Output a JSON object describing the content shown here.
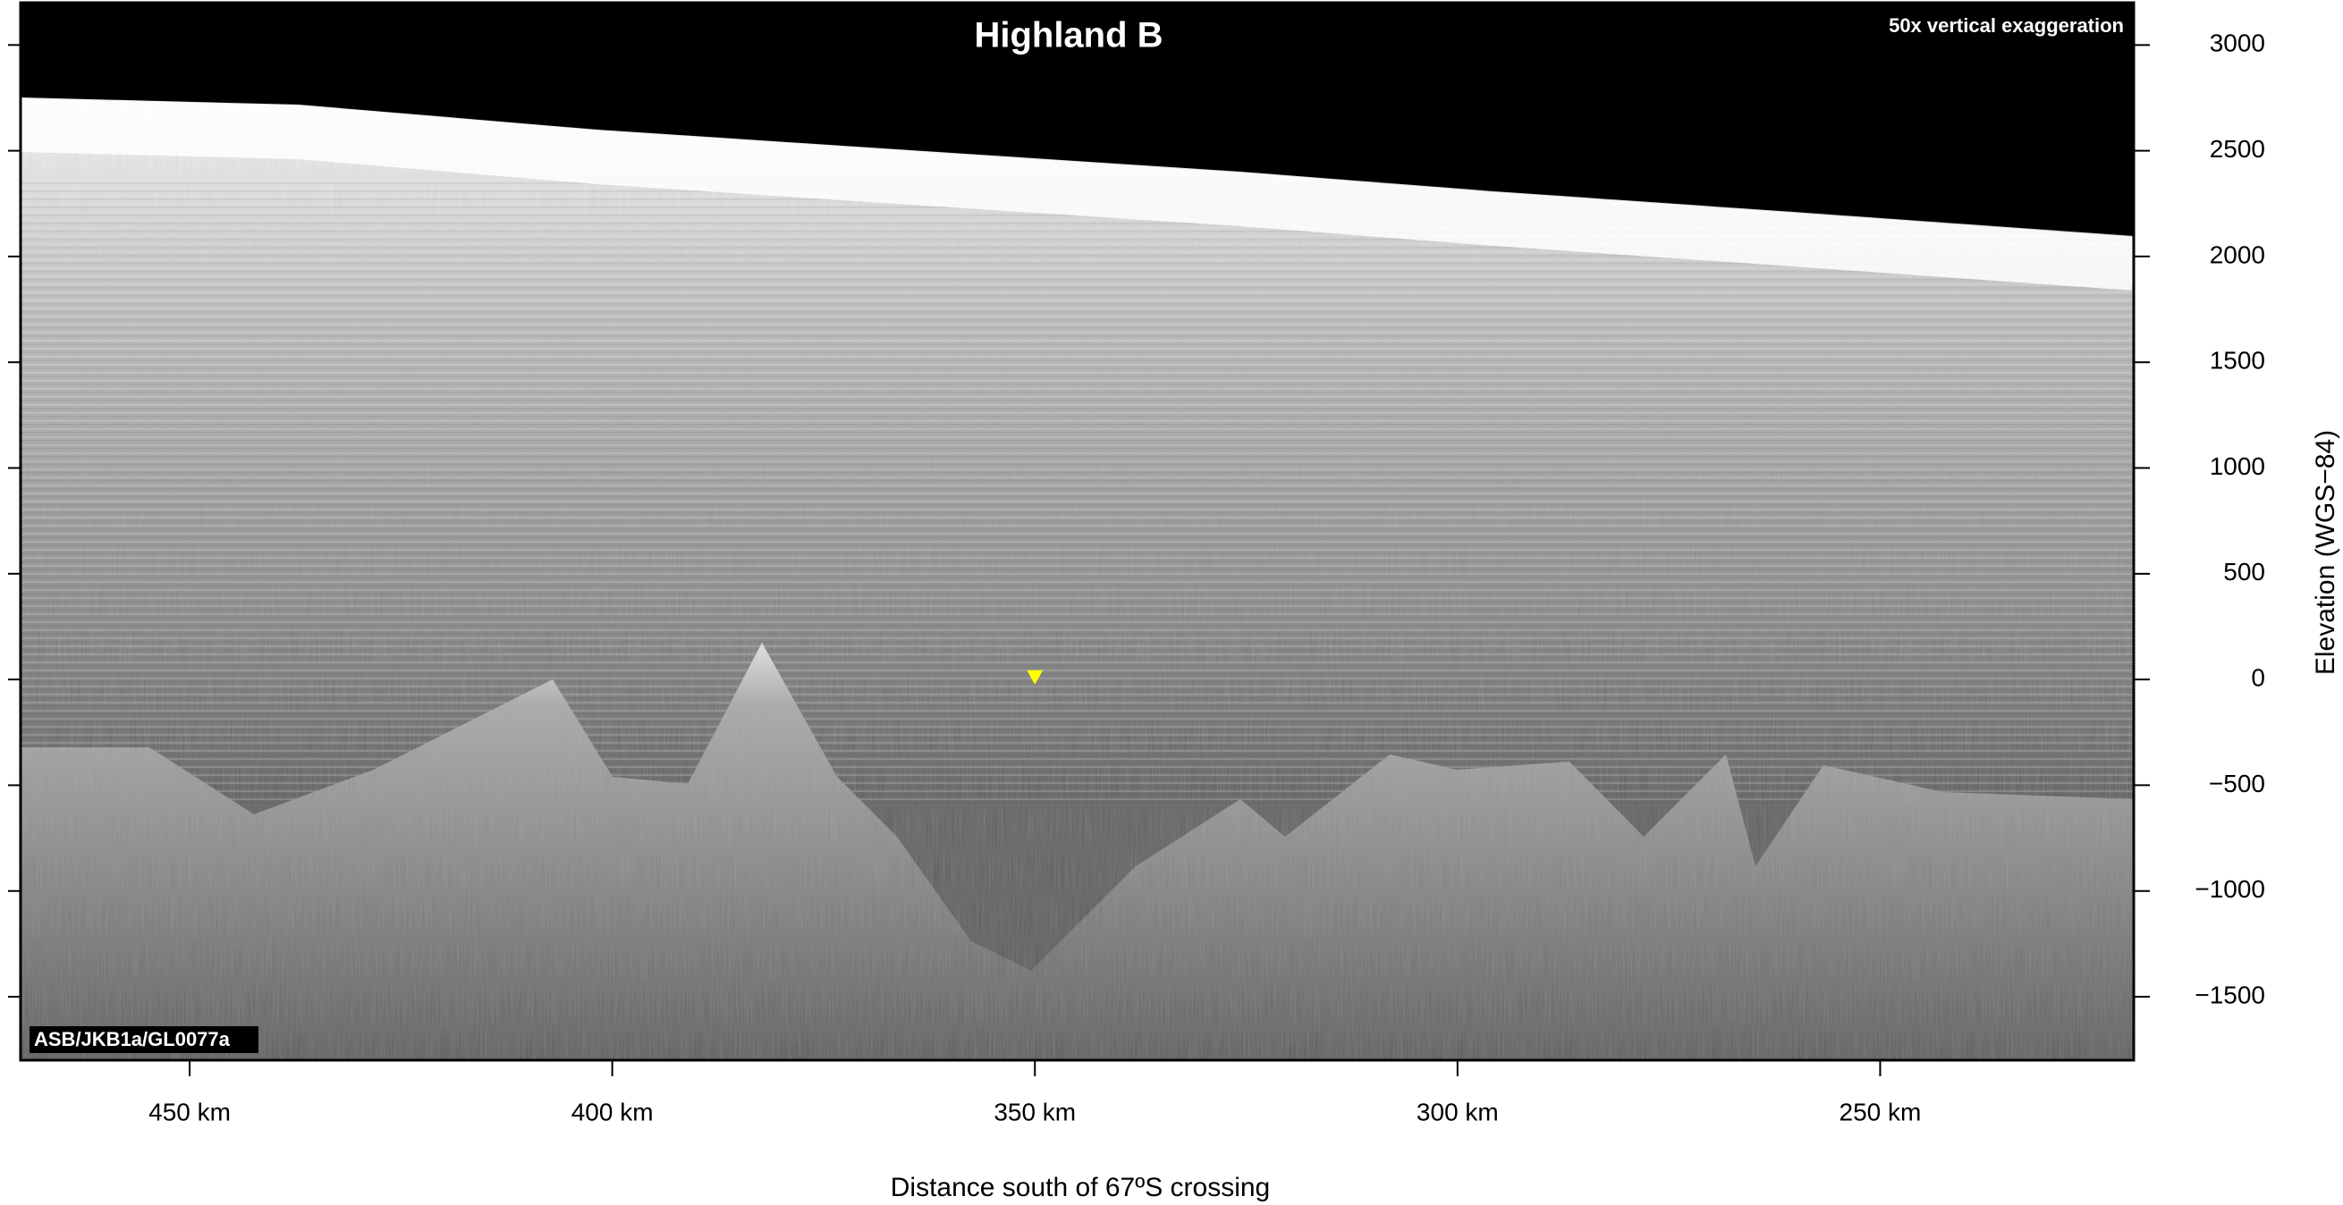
{
  "chart_data": {
    "type": "radargram",
    "title": "Highland B",
    "annotations": [
      "50x vertical exaggeration",
      "ASB/JKB1a/GL0077a"
    ],
    "x_label": "Distance south of 67ºS crossing",
    "y_label": "Elevation (WGS−84)",
    "xlim": [
      470,
      220
    ],
    "ylim": [
      -1800,
      3200
    ],
    "xticks": [
      {
        "value": 450,
        "label": "450 km"
      },
      {
        "value": 400,
        "label": "400 km"
      },
      {
        "value": 350,
        "label": "350 km"
      },
      {
        "value": 300,
        "label": "300 km"
      },
      {
        "value": 250,
        "label": "250 km"
      }
    ],
    "yticks": [
      3000,
      2500,
      2000,
      1500,
      1000,
      500,
      0,
      {
        "value": -500,
        "label": "−500"
      },
      {
        "value": -1000,
        "label": "−1000"
      },
      {
        "value": -1500,
        "label": "−1500"
      }
    ],
    "markers": [
      {
        "x": 350,
        "y": 10,
        "color": "#ffff00"
      }
    ]
  }
}
